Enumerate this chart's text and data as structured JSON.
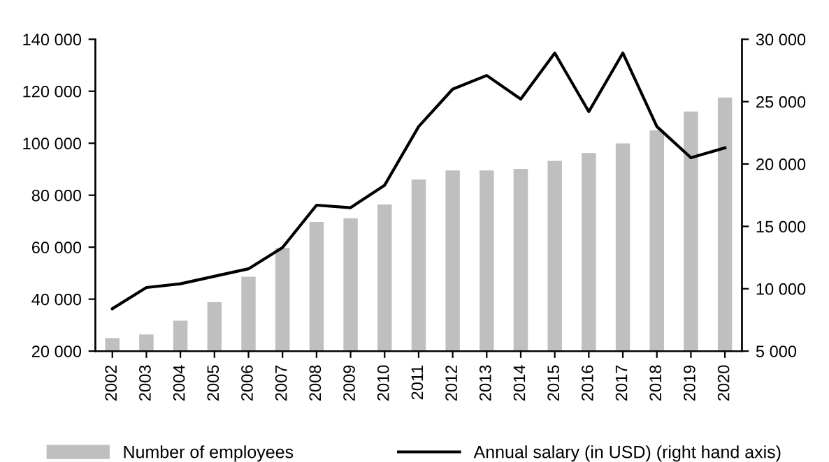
{
  "chart_data": {
    "type": "bar",
    "categories": [
      "2002",
      "2003",
      "2004",
      "2005",
      "2006",
      "2007",
      "2008",
      "2009",
      "2010",
      "2011",
      "2012",
      "2013",
      "2014",
      "2015",
      "2016",
      "2017",
      "2018",
      "2019",
      "2020"
    ],
    "series": [
      {
        "name": "Number of employees",
        "color": "#bfbfbf",
        "values": [
          25000,
          26400,
          31700,
          38800,
          48600,
          59700,
          69700,
          71100,
          76400,
          86000,
          89500,
          89500,
          90100,
          93200,
          96200,
          99900,
          105000,
          112200,
          117600
        ]
      },
      {
        "name": "Annual salary (in USD) (right hand axis)",
        "type": "line",
        "axis": "y2",
        "color": "#000000",
        "values": [
          8400,
          10100,
          10400,
          11000,
          11600,
          13300,
          16700,
          16500,
          18300,
          23000,
          26000,
          27100,
          25200,
          28900,
          24200,
          28900,
          23000,
          20500,
          21300
        ]
      }
    ],
    "ylim": [
      20000,
      140000
    ],
    "yticks": [
      {
        "value": 20000,
        "label": "20 000"
      },
      {
        "value": 40000,
        "label": "40 000"
      },
      {
        "value": 60000,
        "label": "60 000"
      },
      {
        "value": 80000,
        "label": "80 000"
      },
      {
        "value": 100000,
        "label": "100 000"
      },
      {
        "value": 120000,
        "label": "120 000"
      },
      {
        "value": 140000,
        "label": "140 000"
      }
    ],
    "y2lim": [
      5000,
      30000
    ],
    "y2ticks": [
      {
        "value": 5000,
        "label": "5 000"
      },
      {
        "value": 10000,
        "label": "10 000"
      },
      {
        "value": 15000,
        "label": "15 000"
      },
      {
        "value": 20000,
        "label": "20 000"
      },
      {
        "value": 25000,
        "label": "25 000"
      },
      {
        "value": 30000,
        "label": "30 000"
      }
    ],
    "grid": false,
    "legend": "bottom"
  }
}
